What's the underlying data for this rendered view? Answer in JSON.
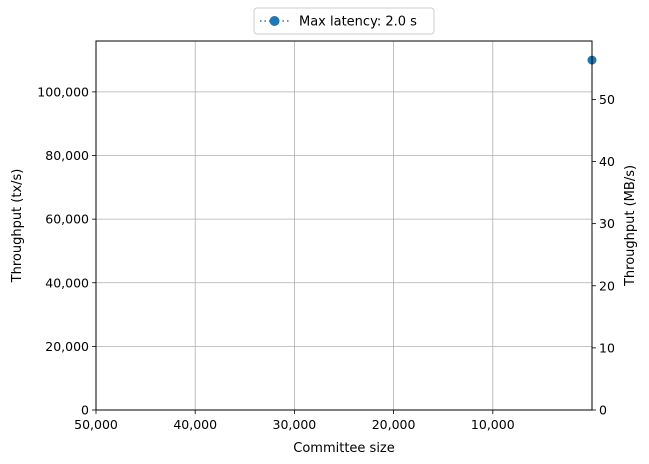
{
  "chart_data": {
    "type": "line",
    "title": "",
    "xlabel": "Committee size",
    "ylabel": "Throughput (tx/s)",
    "y2label": "Throughput (MB/s)",
    "x_inverted": true,
    "xlim": [
      50000,
      0
    ],
    "ylim": [
      0,
      116000
    ],
    "y2lim": [
      0,
      59.4
    ],
    "x_ticks": [
      50000,
      40000,
      30000,
      20000,
      10000
    ],
    "x_tick_labels": [
      "50,000",
      "40,000",
      "30,000",
      "20,000",
      "10,000"
    ],
    "y_ticks": [
      0,
      20000,
      40000,
      60000,
      80000,
      100000
    ],
    "y_tick_labels": [
      "0",
      "20,000",
      "40,000",
      "60,000",
      "80,000",
      "100,000"
    ],
    "y2_ticks": [
      0,
      10,
      20,
      30,
      40,
      50
    ],
    "y2_tick_labels": [
      "0",
      "10",
      "20",
      "30",
      "40",
      "50"
    ],
    "grid": true,
    "legend_position": "top-center",
    "series": [
      {
        "name": "Max latency: 2.0 s",
        "color": "#1f77b4",
        "linestyle": "dotted",
        "marker": "circle",
        "points": [
          {
            "x": 0,
            "y": 110000
          }
        ]
      }
    ]
  }
}
